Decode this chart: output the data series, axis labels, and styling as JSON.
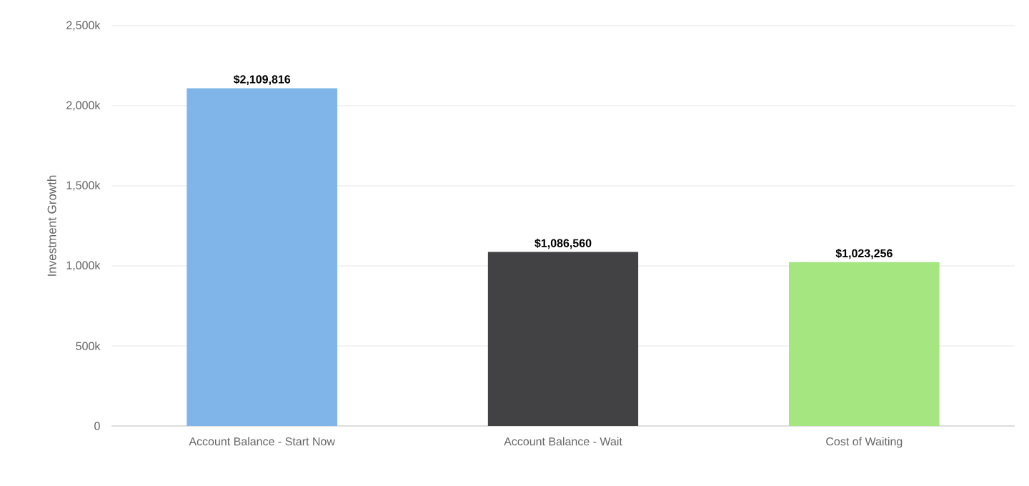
{
  "chart_data": {
    "type": "bar",
    "ylabel": "Investment Growth",
    "categories": [
      "Account Balance - Start Now",
      "Account Balance - Wait",
      "Cost of Waiting"
    ],
    "values": [
      2109816,
      1086560,
      1023256
    ],
    "colors": [
      "#7fb5e8",
      "#424245",
      "#a5e681"
    ],
    "value_labels": [
      "$2,109,816",
      "$1,086,560",
      "$1,023,256"
    ],
    "ylim": [
      0,
      2500000
    ],
    "yticks": [
      {
        "value": 0,
        "label": "0"
      },
      {
        "value": 500000,
        "label": "500k"
      },
      {
        "value": 1000000,
        "label": "1,000k"
      },
      {
        "value": 1500000,
        "label": "1,500k"
      },
      {
        "value": 2000000,
        "label": "2,000k"
      },
      {
        "value": 2500000,
        "label": "2,500k"
      }
    ],
    "grid": "y"
  }
}
